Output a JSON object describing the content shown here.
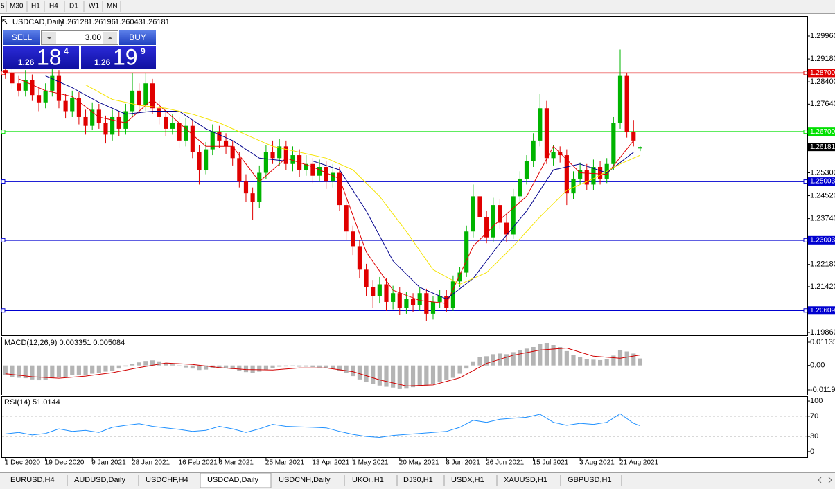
{
  "toolbar": {
    "timeframes": [
      "5",
      "M30",
      "H1",
      "H4",
      "D1",
      "W1",
      "MN"
    ]
  },
  "trade_panel": {
    "sell_label": "SELL",
    "buy_label": "BUY",
    "lots": "3.00",
    "sell_price": {
      "prefix": "1.26",
      "big": "18",
      "small": "4"
    },
    "buy_price": {
      "prefix": "1.26",
      "big": "19",
      "small": "9"
    }
  },
  "tabs": [
    "EURUSD,H4",
    "AUDUSD,Daily",
    "USDCHF,H4",
    "USDCAD,Daily",
    "USDCNH,Daily",
    "UKOil,H1",
    "DJ30,H1",
    "USDX,H1",
    "XAUUSD,H1",
    "GBPUSD,H1"
  ],
  "chart_data": [
    {
      "type": "candlestick",
      "title": "USDCAD,Daily",
      "header_ohlc": [
        1.26128,
        1.26196,
        1.26043,
        1.26181
      ],
      "colors": {
        "up": "#00b400",
        "down": "#e00000"
      },
      "xlim": [
        -0.5,
        120
      ],
      "xticks": [
        {
          "value": 0,
          "label": "1 Dec 2020"
        },
        {
          "value": 6,
          "label": "19 Dec 2020"
        },
        {
          "value": 13,
          "label": "9 Jan 2021"
        },
        {
          "value": 19,
          "label": "28 Jan 2021"
        },
        {
          "value": 26,
          "label": "16 Feb 2021"
        },
        {
          "value": 32,
          "label": "6 Mar 2021"
        },
        {
          "value": 39,
          "label": "25 Mar 2021"
        },
        {
          "value": 46,
          "label": "13 Apr 2021"
        },
        {
          "value": 52,
          "label": "1 May 2021"
        },
        {
          "value": 59,
          "label": "20 May 2021"
        },
        {
          "value": 66,
          "label": "8 Jun 2021"
        },
        {
          "value": 72,
          "label": "26 Jun 2021"
        },
        {
          "value": 79,
          "label": "15 Jul 2021"
        },
        {
          "value": 86,
          "label": "3 Aug 2021"
        },
        {
          "value": 92,
          "label": "21 Aug 2021"
        }
      ],
      "ylim": [
        1.19766,
        1.30621
      ],
      "yticks": [
        {
          "value": 1.2996,
          "label": "1.29960"
        },
        {
          "value": 1.2918,
          "label": "1.29180"
        },
        {
          "value": 1.284,
          "label": "1.28400"
        },
        {
          "value": 1.2764,
          "label": "1.27640"
        },
        {
          "value": 1.253,
          "label": "1.25300"
        },
        {
          "value": 1.2452,
          "label": "1.24520"
        },
        {
          "value": 1.2374,
          "label": "1.23740"
        },
        {
          "value": 1.2218,
          "label": "1.22180"
        },
        {
          "value": 1.2142,
          "label": "1.21420"
        },
        {
          "value": 1.1986,
          "label": "1.19860"
        }
      ],
      "levels": [
        {
          "value": 1.287,
          "label": "1.28700",
          "color": "#e00000"
        },
        {
          "value": 1.267,
          "label": "1.26700",
          "color": "#00e000"
        },
        {
          "value": 1.25003,
          "label": "1.25003",
          "color": "#0000d0"
        },
        {
          "value": 1.23003,
          "label": "1.23003",
          "color": "#0000d0"
        },
        {
          "value": 1.20609,
          "label": "1.20609",
          "color": "#0000d0"
        }
      ],
      "open": [
        1.288,
        1.287,
        1.2835,
        1.281,
        1.2845,
        1.2795,
        1.277,
        1.281,
        1.286,
        1.2775,
        1.274,
        1.2785,
        1.272,
        1.269,
        1.2745,
        1.27,
        1.266,
        1.272,
        1.268,
        1.274,
        1.281,
        1.276,
        1.2835,
        1.275,
        1.272,
        1.268,
        1.27,
        1.264,
        1.269,
        1.26,
        1.254,
        1.261,
        1.267,
        1.264,
        1.262,
        1.258,
        1.25,
        1.246,
        1.243,
        1.253,
        1.26,
        1.258,
        1.262,
        1.256,
        1.259,
        1.254,
        1.256,
        1.252,
        1.255,
        1.25,
        1.253,
        1.242,
        1.233,
        1.228,
        1.22,
        1.214,
        1.211,
        1.215,
        1.209,
        1.212,
        1.207,
        1.21,
        1.208,
        1.212,
        1.205,
        1.209,
        1.211,
        1.207,
        1.216,
        1.219,
        1.233,
        1.245,
        1.238,
        1.231,
        1.242,
        1.236,
        1.232,
        1.245,
        1.251,
        1.257,
        1.264,
        1.275,
        1.258,
        1.26,
        1.259,
        1.246,
        1.251,
        1.254,
        1.249,
        1.255,
        1.251,
        1.256,
        1.27,
        1.286,
        1.267,
        1.2613
      ],
      "high": [
        1.29,
        1.2895,
        1.286,
        1.288,
        1.2865,
        1.282,
        1.2835,
        1.2885,
        1.288,
        1.28,
        1.281,
        1.2805,
        1.2745,
        1.277,
        1.2765,
        1.2725,
        1.2745,
        1.274,
        1.2765,
        1.287,
        1.2835,
        1.287,
        1.285,
        1.2775,
        1.2745,
        1.273,
        1.272,
        1.2715,
        1.271,
        1.2625,
        1.2635,
        1.2695,
        1.269,
        1.2665,
        1.264,
        1.26,
        1.2525,
        1.248,
        1.2555,
        1.2625,
        1.264,
        1.2645,
        1.264,
        1.262,
        1.261,
        1.259,
        1.258,
        1.2575,
        1.257,
        1.256,
        1.255,
        1.244,
        1.235,
        1.23,
        1.222,
        1.2165,
        1.2175,
        1.217,
        1.2145,
        1.214,
        1.2125,
        1.212,
        1.214,
        1.2135,
        1.211,
        1.213,
        1.213,
        1.218,
        1.221,
        1.235,
        1.249,
        1.2475,
        1.24,
        1.2445,
        1.244,
        1.2385,
        1.2475,
        1.2535,
        1.259,
        1.2665,
        1.28,
        1.2775,
        1.2625,
        1.262,
        1.261,
        1.2535,
        1.2565,
        1.256,
        1.2575,
        1.257,
        1.258,
        1.272,
        1.295,
        1.287,
        1.271,
        1.262
      ],
      "low": [
        1.285,
        1.2815,
        1.279,
        1.279,
        1.2775,
        1.274,
        1.275,
        1.279,
        1.275,
        1.2715,
        1.272,
        1.2695,
        1.266,
        1.2675,
        1.268,
        1.263,
        1.264,
        1.2655,
        1.266,
        1.272,
        1.2735,
        1.274,
        1.273,
        1.2695,
        1.2655,
        1.266,
        1.2615,
        1.262,
        1.258,
        1.249,
        1.2525,
        1.259,
        1.2615,
        1.2595,
        1.2555,
        1.248,
        1.243,
        1.237,
        1.241,
        1.251,
        1.256,
        1.2555,
        1.254,
        1.2535,
        1.2515,
        1.252,
        1.2495,
        1.25,
        1.2475,
        1.248,
        1.24,
        1.23,
        1.225,
        1.217,
        1.211,
        1.207,
        1.2085,
        1.206,
        1.2065,
        1.2045,
        1.205,
        1.2055,
        1.206,
        1.2025,
        1.203,
        1.207,
        1.2055,
        1.206,
        1.214,
        1.2175,
        1.231,
        1.236,
        1.229,
        1.2295,
        1.234,
        1.2295,
        1.2305,
        1.243,
        1.249,
        1.255,
        1.262,
        1.256,
        1.2555,
        1.2565,
        1.242,
        1.244,
        1.249,
        1.247,
        1.247,
        1.249,
        1.2495,
        1.254,
        1.268,
        1.265,
        1.262,
        1.2604
      ],
      "close": [
        1.287,
        1.2835,
        1.281,
        1.2845,
        1.2795,
        1.277,
        1.281,
        1.286,
        1.2775,
        1.274,
        1.2785,
        1.272,
        1.269,
        1.2745,
        1.27,
        1.266,
        1.272,
        1.268,
        1.274,
        1.281,
        1.276,
        1.2835,
        1.275,
        1.272,
        1.268,
        1.27,
        1.264,
        1.269,
        1.26,
        1.254,
        1.261,
        1.267,
        1.264,
        1.262,
        1.258,
        1.25,
        1.246,
        1.243,
        1.253,
        1.26,
        1.258,
        1.262,
        1.256,
        1.259,
        1.254,
        1.256,
        1.252,
        1.255,
        1.25,
        1.253,
        1.242,
        1.233,
        1.228,
        1.22,
        1.214,
        1.211,
        1.215,
        1.209,
        1.212,
        1.207,
        1.21,
        1.208,
        1.212,
        1.205,
        1.209,
        1.211,
        1.207,
        1.216,
        1.219,
        1.233,
        1.245,
        1.238,
        1.231,
        1.242,
        1.236,
        1.232,
        1.245,
        1.251,
        1.257,
        1.264,
        1.275,
        1.258,
        1.26,
        1.259,
        1.246,
        1.251,
        1.254,
        1.249,
        1.255,
        1.251,
        1.256,
        1.27,
        1.286,
        1.267,
        1.264,
        1.2618
      ],
      "overlays": [
        {
          "color": "#e00000",
          "x": [
            2,
            6,
            10,
            14,
            18,
            22,
            26,
            30,
            34,
            38,
            42,
            46,
            50,
            54,
            58,
            62,
            66,
            70,
            74,
            78,
            82,
            86,
            90,
            94
          ],
          "values": [
            1.285,
            1.281,
            1.279,
            1.272,
            1.27,
            1.278,
            1.27,
            1.262,
            1.262,
            1.25,
            1.258,
            1.255,
            1.251,
            1.226,
            1.213,
            1.2095,
            1.2085,
            1.228,
            1.237,
            1.245,
            1.262,
            1.253,
            1.2525,
            1.264
          ]
        },
        {
          "color": "#00008b",
          "x": [
            6,
            10,
            14,
            18,
            22,
            26,
            30,
            34,
            38,
            42,
            46,
            50,
            54,
            58,
            62,
            66,
            70,
            74,
            78,
            82,
            86,
            90,
            94
          ],
          "values": [
            1.286,
            1.282,
            1.277,
            1.273,
            1.274,
            1.274,
            1.268,
            1.264,
            1.258,
            1.257,
            1.257,
            1.254,
            1.24,
            1.223,
            1.214,
            1.21,
            1.217,
            1.229,
            1.24,
            1.254,
            1.256,
            1.253,
            1.26
          ]
        },
        {
          "color": "#f5e400",
          "x": [
            12,
            16,
            20,
            24,
            28,
            32,
            36,
            40,
            44,
            48,
            52,
            56,
            60,
            64,
            68,
            72,
            76,
            80,
            84,
            88,
            92,
            95
          ],
          "values": [
            1.283,
            1.278,
            1.276,
            1.275,
            1.273,
            1.27,
            1.266,
            1.262,
            1.26,
            1.258,
            1.254,
            1.245,
            1.233,
            1.22,
            1.215,
            1.219,
            1.228,
            1.238,
            1.247,
            1.251,
            1.256,
            1.259
          ]
        }
      ]
    },
    {
      "type": "macd",
      "title": "MACD(12,26,9) 0.003351 0.005084",
      "color": "#b4b4b4",
      "ylim": [
        -0.01426,
        0.01371
      ],
      "yticks": [
        0.01135,
        {
          "value": 0,
          "label": "0.00"
        },
        {
          "value": -0.0119,
          "label": "-0.01190"
        }
      ],
      "values": [
        -0.0045,
        -0.0055,
        -0.006,
        -0.0062,
        -0.0068,
        -0.0072,
        -0.007,
        -0.0062,
        -0.0058,
        -0.0055,
        -0.0048,
        -0.0045,
        -0.0045,
        -0.004,
        -0.0035,
        -0.003,
        -0.0025,
        -0.0015,
        -0.0005,
        0.0008,
        0.0015,
        0.0022,
        0.0025,
        0.002,
        0.0012,
        0.0005,
        -0.0002,
        -0.001,
        -0.0015,
        -0.0022,
        -0.002,
        -0.0012,
        -0.001,
        -0.0012,
        -0.0018,
        -0.0025,
        -0.0032,
        -0.0035,
        -0.003,
        -0.002,
        -0.0012,
        -0.0006,
        -0.0005,
        -0.0004,
        -0.0006,
        -0.0006,
        -0.0008,
        -0.001,
        -0.0014,
        -0.0016,
        -0.0025,
        -0.0038,
        -0.0052,
        -0.0068,
        -0.0082,
        -0.0092,
        -0.0098,
        -0.0104,
        -0.0108,
        -0.0112,
        -0.011,
        -0.0106,
        -0.01,
        -0.0098,
        -0.009,
        -0.008,
        -0.0072,
        -0.006,
        -0.004,
        -0.0015,
        0.002,
        0.004,
        0.0045,
        0.0055,
        0.0058,
        0.0055,
        0.0065,
        0.0075,
        0.0082,
        0.009,
        0.0105,
        0.011,
        0.01,
        0.009,
        0.007,
        0.005,
        0.004,
        0.003,
        0.0028,
        0.0026,
        0.003,
        0.0048,
        0.0075,
        0.0068,
        0.0058,
        0.0034
      ],
      "signal": {
        "color": "#d00000",
        "x": [
          0,
          4,
          8,
          12,
          16,
          20,
          24,
          28,
          32,
          36,
          40,
          44,
          48,
          52,
          56,
          60,
          64,
          68,
          72,
          76,
          80,
          84,
          88,
          92,
          95
        ],
        "values": [
          -0.004,
          -0.0055,
          -0.0062,
          -0.0052,
          -0.0035,
          -0.001,
          0.0012,
          0.0005,
          -0.001,
          -0.002,
          -0.0022,
          -0.0012,
          -0.0012,
          -0.003,
          -0.007,
          -0.01,
          -0.0095,
          -0.006,
          0.001,
          0.005,
          0.0075,
          0.0085,
          0.0045,
          0.0035,
          0.0051
        ]
      }
    },
    {
      "type": "line",
      "title": "RSI(14) 51.0144",
      "color": "#1e90ff",
      "ylim": [
        -11.1,
        108.3
      ],
      "yticks": [
        100,
        70,
        30,
        0
      ],
      "levels": [
        70,
        30
      ],
      "x": [
        0,
        2,
        4,
        6,
        8,
        10,
        12,
        14,
        16,
        18,
        20,
        22,
        24,
        26,
        28,
        30,
        32,
        34,
        36,
        38,
        40,
        42,
        44,
        46,
        48,
        50,
        52,
        54,
        56,
        58,
        60,
        62,
        64,
        66,
        68,
        70,
        72,
        74,
        76,
        78,
        80,
        82,
        84,
        86,
        88,
        90,
        92,
        94,
        95
      ],
      "values": [
        35,
        38,
        33,
        36,
        45,
        40,
        42,
        38,
        48,
        52,
        55,
        50,
        47,
        44,
        40,
        42,
        50,
        45,
        38,
        45,
        54,
        50,
        49,
        48,
        47,
        40,
        34,
        30,
        28,
        32,
        34,
        36,
        38,
        40,
        48,
        62,
        58,
        64,
        66,
        68,
        74,
        58,
        52,
        56,
        54,
        58,
        75,
        56,
        51.0144
      ]
    }
  ]
}
